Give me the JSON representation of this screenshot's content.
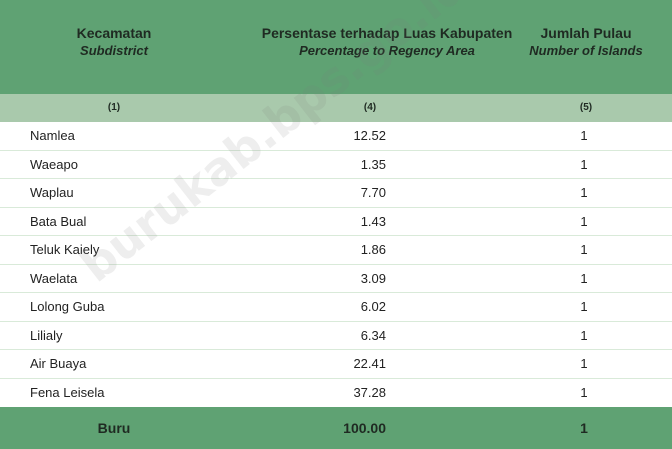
{
  "header": {
    "col1_label": "Kecamatan",
    "col1_sublabel": "Subdistrict",
    "col2_label": "Persentase terhadap Luas Kabupaten",
    "col2_sublabel": "Percentage to Regency Area",
    "col3_label": "Jumlah Pulau",
    "col3_sublabel": "Number of Islands"
  },
  "column_numbers": [
    "(1)",
    "(4)",
    "(5)"
  ],
  "rows": [
    {
      "name": "Namlea",
      "percentage": "12.52",
      "islands": "1"
    },
    {
      "name": "Waeapo",
      "percentage": "1.35",
      "islands": "1"
    },
    {
      "name": "Waplau",
      "percentage": "7.70",
      "islands": "1"
    },
    {
      "name": "Bata Bual",
      "percentage": "1.43",
      "islands": "1"
    },
    {
      "name": "Teluk Kaiely",
      "percentage": "1.86",
      "islands": "1"
    },
    {
      "name": "Waelata",
      "percentage": "3.09",
      "islands": "1"
    },
    {
      "name": "Lolong Guba",
      "percentage": "6.02",
      "islands": "1"
    },
    {
      "name": "Lilialy",
      "percentage": "6.34",
      "islands": "1"
    },
    {
      "name": "Air Buaya",
      "percentage": "22.41",
      "islands": "1"
    },
    {
      "name": "Fena Leisela",
      "percentage": "37.28",
      "islands": "1"
    }
  ],
  "total": {
    "name": "Buru",
    "percentage": "100.00",
    "islands": "1"
  },
  "watermark": "buruk​ab.bps.go.id",
  "colors": {
    "header_green": "#5fa273",
    "subheader_green": "#a9c9ac",
    "row_divider": "#d9ead9"
  }
}
